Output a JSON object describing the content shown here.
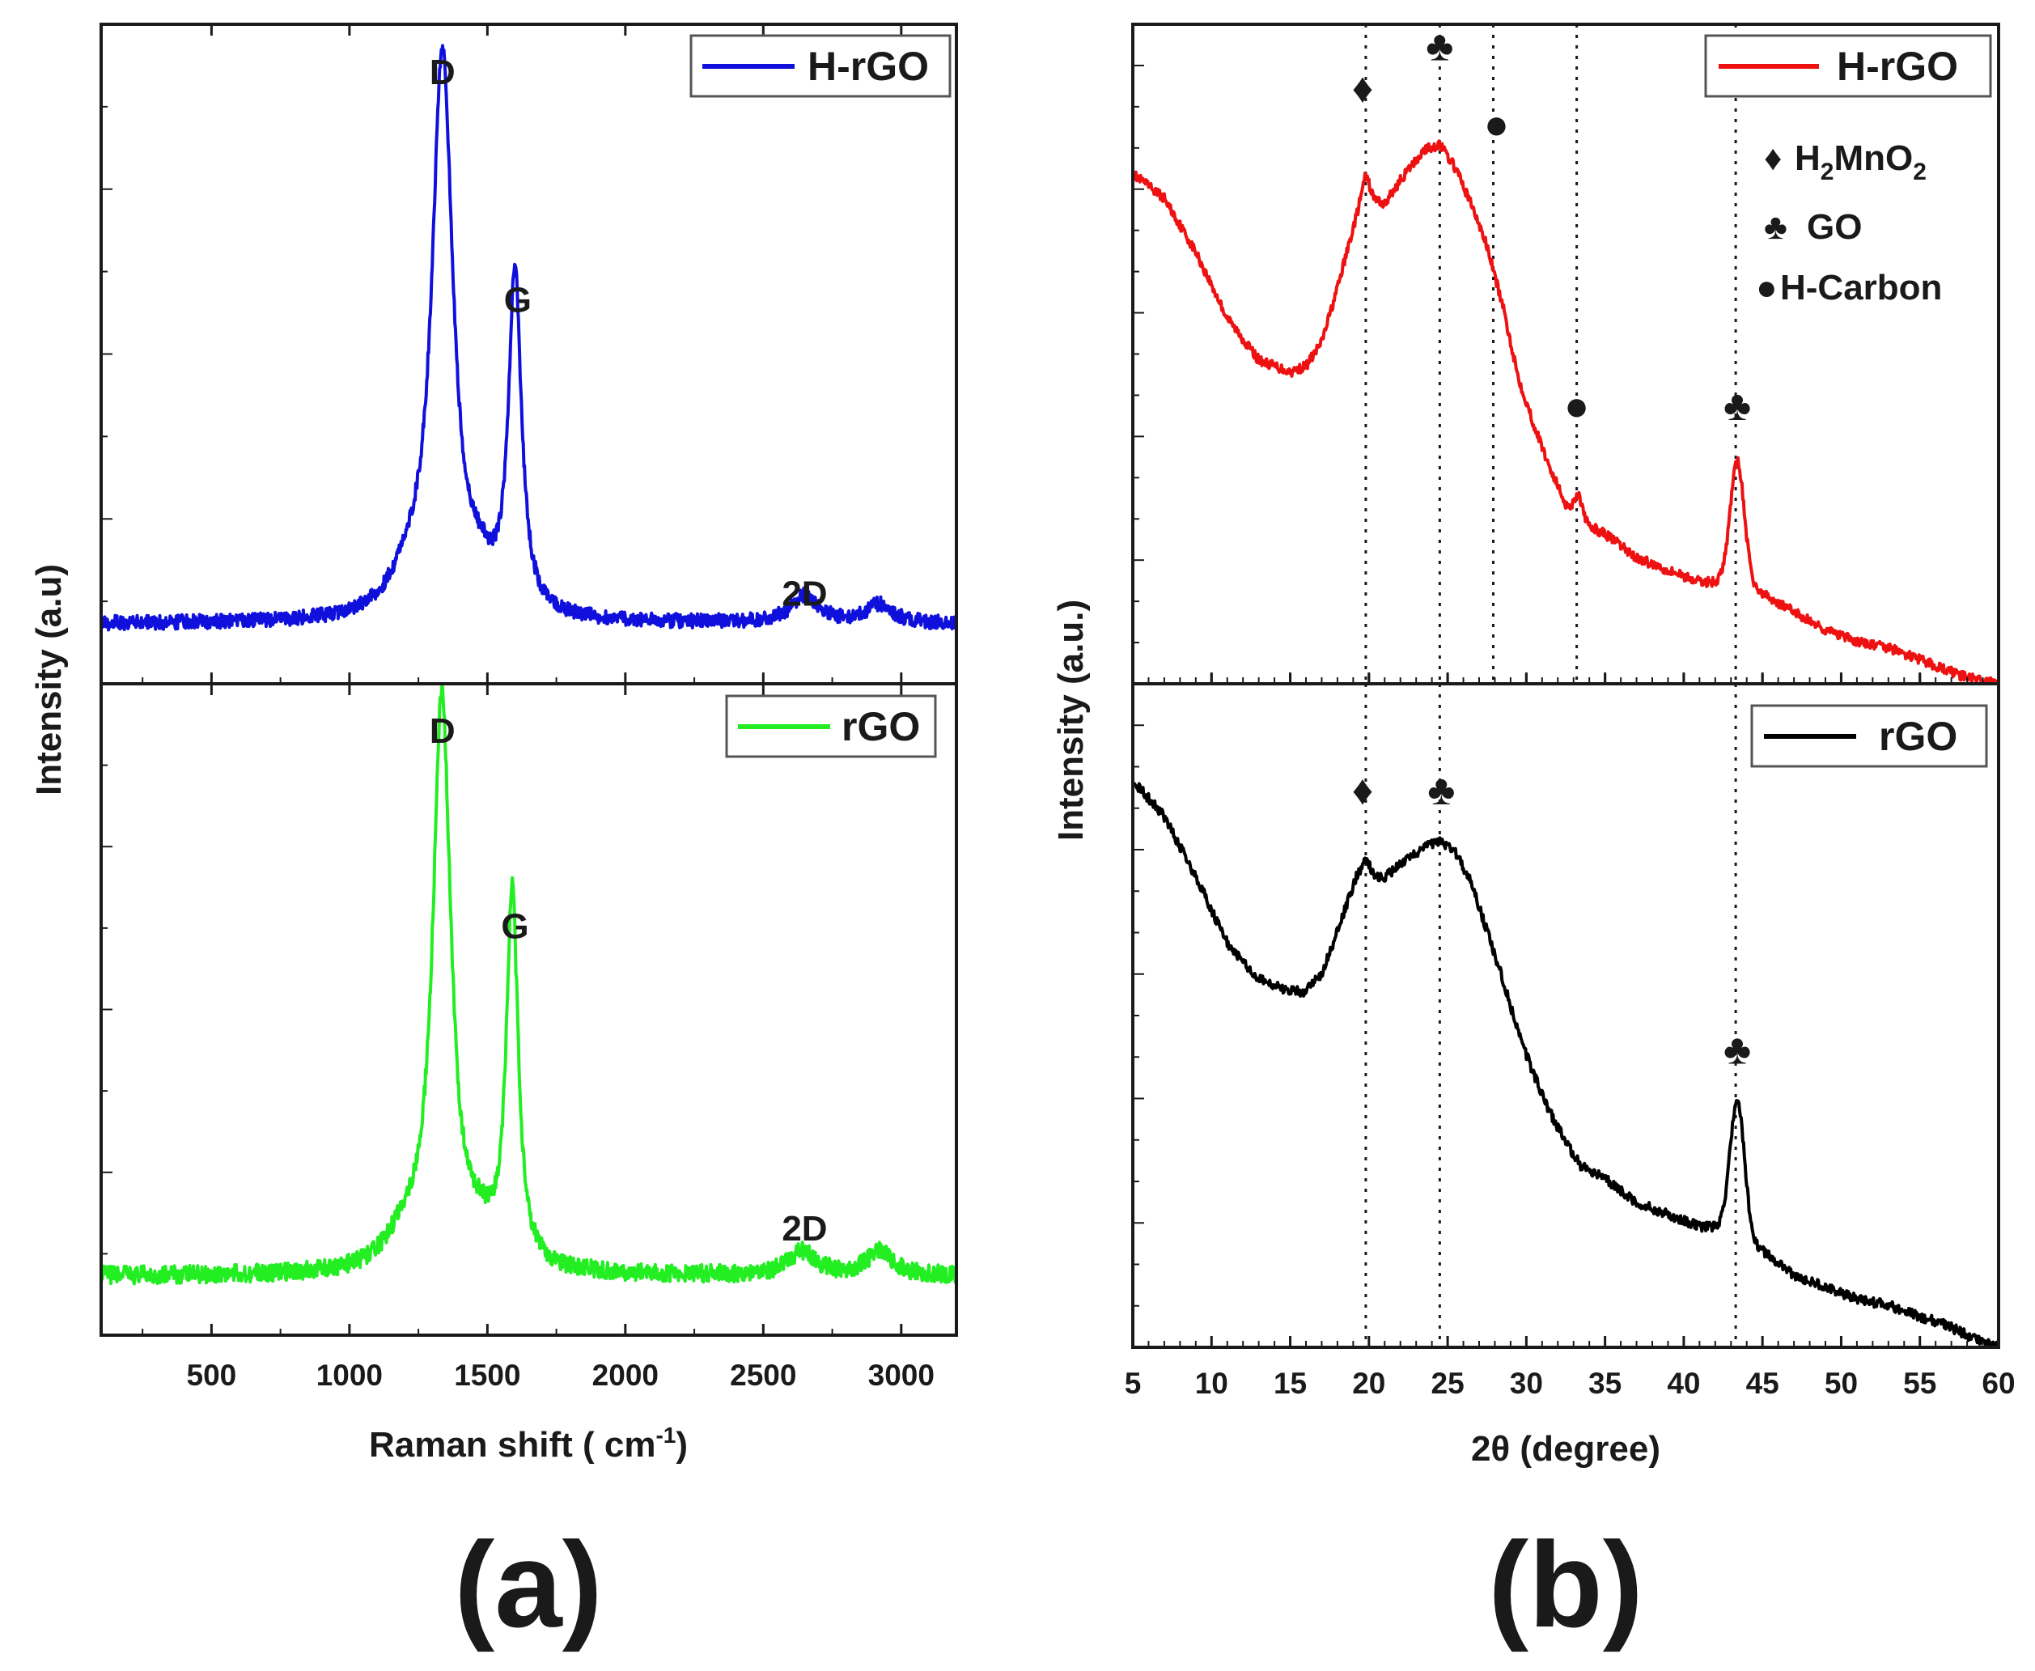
{
  "chart_data": [
    {
      "panel": "(a)",
      "type": "line",
      "title": "",
      "xlabel": "Raman shift ( cm",
      "xlabel_sup": "-1",
      "xlabel_suffix": ")",
      "ylabel": "Intensity (a.u)",
      "xlim": [
        100,
        3200
      ],
      "ylim": [
        0,
        1.1
      ],
      "xticks": [
        500,
        1000,
        1500,
        2000,
        2500,
        3000
      ],
      "grid": false,
      "subplots": [
        {
          "position": "top",
          "legend": "H-rGO",
          "color": "#1010dd",
          "baseline": 0.1,
          "noise": 0.012,
          "peaks": [
            {
              "center": 1337,
              "height": 0.94,
              "width": 46
            },
            {
              "center": 1600,
              "height": 0.57,
              "width": 28
            },
            {
              "center": 1210,
              "height": 0.05,
              "width": 80
            },
            {
              "center": 1475,
              "height": 0.04,
              "width": 50
            },
            {
              "center": 2650,
              "height": 0.045,
              "width": 60
            },
            {
              "center": 2920,
              "height": 0.03,
              "width": 55
            }
          ],
          "annotations": [
            {
              "text": "D",
              "x": 1337,
              "y": 1.0
            },
            {
              "text": "G",
              "x": 1610,
              "y": 0.62
            },
            {
              "text": "2D",
              "x": 2650,
              "y": 0.13
            }
          ]
        },
        {
          "position": "bottom",
          "legend": "rGO",
          "color": "#22ee22",
          "baseline": 0.1,
          "noise": 0.015,
          "peaks": [
            {
              "center": 1335,
              "height": 0.96,
              "width": 40
            },
            {
              "center": 1590,
              "height": 0.63,
              "width": 26
            },
            {
              "center": 1200,
              "height": 0.05,
              "width": 80
            },
            {
              "center": 1470,
              "height": 0.04,
              "width": 50
            },
            {
              "center": 2640,
              "height": 0.04,
              "width": 60
            },
            {
              "center": 2920,
              "height": 0.04,
              "width": 55
            }
          ],
          "annotations": [
            {
              "text": "D",
              "x": 1337,
              "y": 1.0
            },
            {
              "text": "G",
              "x": 1600,
              "y": 0.67
            },
            {
              "text": "2D",
              "x": 2650,
              "y": 0.16
            }
          ]
        }
      ]
    },
    {
      "panel": "(b)",
      "type": "line",
      "title": "",
      "xlabel": "2θ (degree)",
      "ylabel": "Intensity (a.u.)",
      "xlim": [
        5,
        60
      ],
      "ylim": [
        0,
        1.1
      ],
      "xticks": [
        5,
        10,
        15,
        20,
        25,
        30,
        35,
        40,
        45,
        50,
        55,
        60
      ],
      "grid": false,
      "reference_lines": [
        19.8,
        24.5,
        27.9,
        33.2,
        43.3
      ],
      "phase_legend": [
        {
          "symbol": "♦",
          "label": "H",
          "sub": "2",
          "label2": "MnO",
          "sub2": "2"
        },
        {
          "symbol": "♣",
          "label": "GO"
        },
        {
          "symbol": "●",
          "label": "H-Carbon"
        }
      ],
      "subplots": [
        {
          "position": "top",
          "legend": "H-rGO",
          "color": "#ee1111",
          "noise": 0.008,
          "profile": [
            [
              5,
              0.85
            ],
            [
              7,
              0.81
            ],
            [
              9,
              0.72
            ],
            [
              11,
              0.61
            ],
            [
              13,
              0.54
            ],
            [
              15,
              0.52
            ],
            [
              16,
              0.53
            ],
            [
              17,
              0.57
            ],
            [
              18,
              0.66
            ],
            [
              19.3,
              0.79
            ],
            [
              19.8,
              0.85
            ],
            [
              20.3,
              0.81
            ],
            [
              21,
              0.8
            ],
            [
              22,
              0.84
            ],
            [
              23.5,
              0.89
            ],
            [
              24.5,
              0.9
            ],
            [
              25.5,
              0.86
            ],
            [
              26.5,
              0.8
            ],
            [
              27.5,
              0.73
            ],
            [
              28.5,
              0.63
            ],
            [
              29.5,
              0.51
            ],
            [
              30.5,
              0.43
            ],
            [
              31.5,
              0.36
            ],
            [
              32.5,
              0.3
            ],
            [
              33.5,
              0.27
            ],
            [
              35,
              0.25
            ],
            [
              37,
              0.21
            ],
            [
              39,
              0.19
            ],
            [
              41,
              0.17
            ],
            [
              42.5,
              0.17
            ],
            [
              43.5,
              0.17
            ],
            [
              45,
              0.15
            ],
            [
              47,
              0.12
            ],
            [
              49,
              0.09
            ],
            [
              51,
              0.07
            ],
            [
              53,
              0.06
            ],
            [
              55,
              0.04
            ],
            [
              57,
              0.02
            ],
            [
              58,
              0.01
            ],
            [
              60,
              0.0
            ]
          ],
          "sharp_peaks": [
            {
              "center": 33.3,
              "height": 0.04,
              "width": 0.25
            },
            {
              "center": 43.4,
              "height": 0.2,
              "width": 0.45
            }
          ],
          "markers": [
            {
              "symbol": "♦",
              "x": 19.6,
              "y": 0.97
            },
            {
              "symbol": "♣",
              "x": 24.5,
              "y": 1.04
            },
            {
              "symbol": "●",
              "x": 28.1,
              "y": 0.91
            },
            {
              "symbol": "●",
              "x": 33.2,
              "y": 0.44
            },
            {
              "symbol": "♣",
              "x": 43.4,
              "y": 0.44
            }
          ]
        },
        {
          "position": "bottom",
          "legend": "rGO",
          "color": "#000000",
          "noise": 0.008,
          "profile": [
            [
              5,
              0.94
            ],
            [
              7,
              0.88
            ],
            [
              9,
              0.78
            ],
            [
              11,
              0.67
            ],
            [
              13,
              0.61
            ],
            [
              15,
              0.59
            ],
            [
              16,
              0.59
            ],
            [
              17,
              0.62
            ],
            [
              18,
              0.69
            ],
            [
              19.2,
              0.78
            ],
            [
              19.8,
              0.81
            ],
            [
              20.4,
              0.78
            ],
            [
              21,
              0.78
            ],
            [
              22,
              0.8
            ],
            [
              23.5,
              0.83
            ],
            [
              24.5,
              0.84
            ],
            [
              25.5,
              0.82
            ],
            [
              26.5,
              0.77
            ],
            [
              27.5,
              0.69
            ],
            [
              28.5,
              0.61
            ],
            [
              29.5,
              0.52
            ],
            [
              30.5,
              0.45
            ],
            [
              31.5,
              0.39
            ],
            [
              32.5,
              0.34
            ],
            [
              33.5,
              0.3
            ],
            [
              35,
              0.28
            ],
            [
              37,
              0.24
            ],
            [
              39,
              0.22
            ],
            [
              41,
              0.2
            ],
            [
              42.5,
              0.2
            ],
            [
              43.5,
              0.19
            ],
            [
              45,
              0.16
            ],
            [
              47,
              0.12
            ],
            [
              49,
              0.1
            ],
            [
              51,
              0.08
            ],
            [
              53,
              0.07
            ],
            [
              55,
              0.05
            ],
            [
              56.5,
              0.04
            ],
            [
              58,
              0.02
            ],
            [
              60,
              0.0
            ]
          ],
          "sharp_peaks": [
            {
              "center": 43.4,
              "height": 0.22,
              "width": 0.45
            }
          ],
          "markers": [
            {
              "symbol": "♦",
              "x": 19.6,
              "y": 0.9
            },
            {
              "symbol": "♣",
              "x": 24.6,
              "y": 0.9
            },
            {
              "symbol": "♣",
              "x": 43.4,
              "y": 0.47
            }
          ]
        }
      ]
    }
  ]
}
